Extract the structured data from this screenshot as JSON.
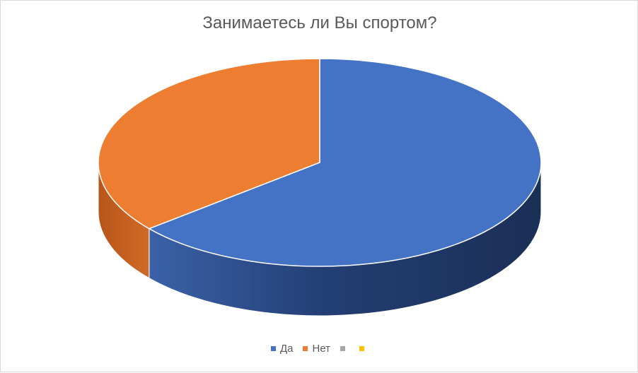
{
  "chart_data": {
    "type": "pie",
    "title": "Занимаетесь ли Вы спортом?",
    "categories": [
      "Да",
      "Нет",
      "",
      ""
    ],
    "values": [
      64,
      36,
      0,
      0
    ],
    "colors": [
      "#4472C4",
      "#ED7D31",
      "#A5A5A5",
      "#FFC000"
    ],
    "side_colors": [
      "#2F5597",
      "#C55A11"
    ],
    "legend_position": "bottom",
    "style": "3d"
  }
}
